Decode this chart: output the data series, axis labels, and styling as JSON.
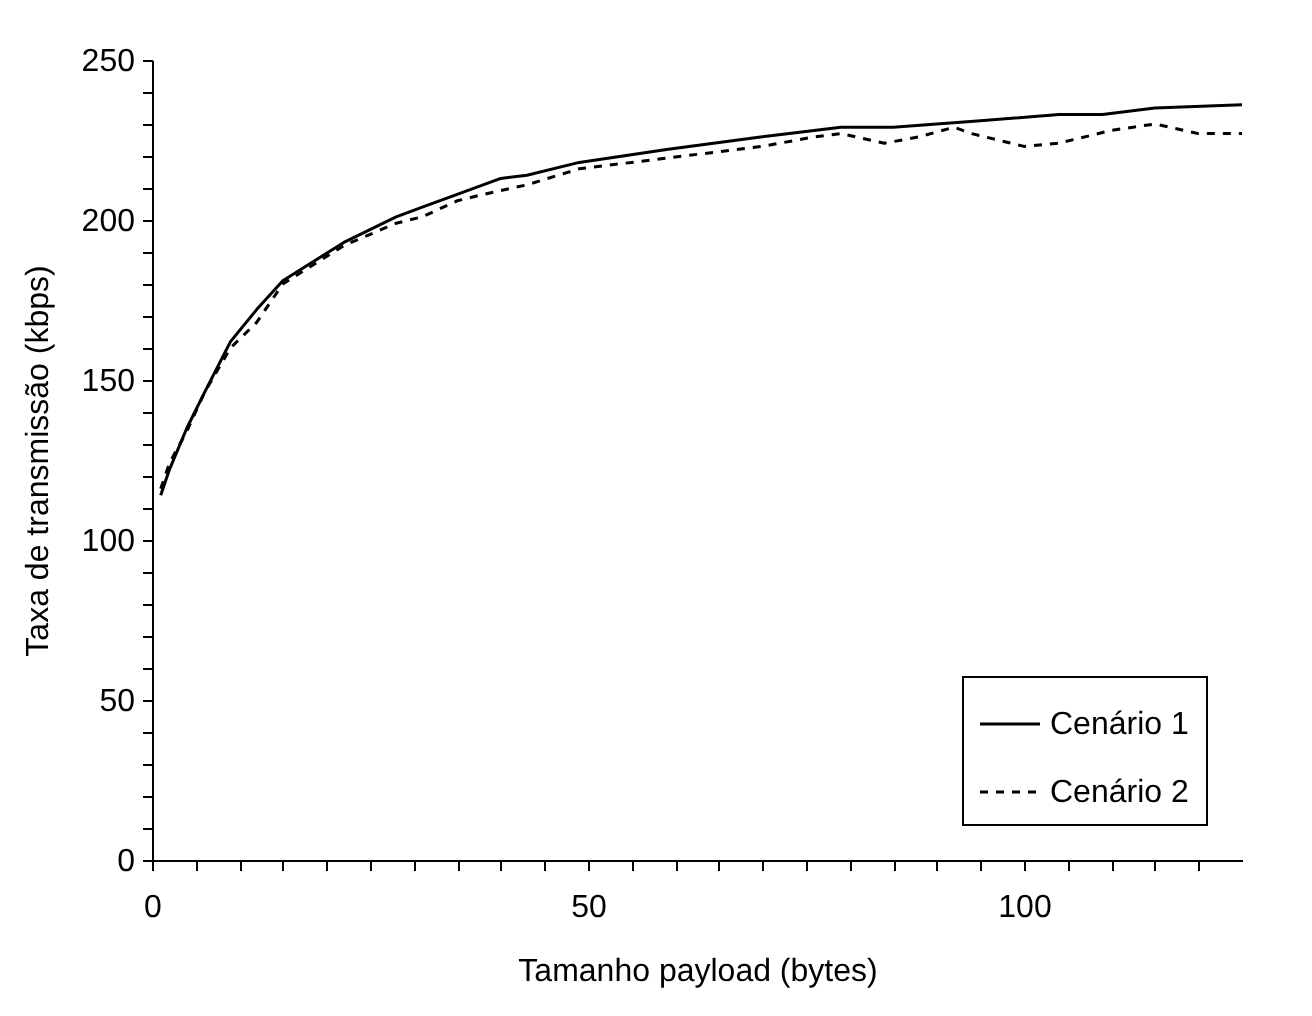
{
  "chart_data": {
    "type": "line",
    "xlabel": "Tamanho payload (bytes)",
    "ylabel": "Taxa de transmissão (kbps)",
    "xlim": [
      0,
      125
    ],
    "ylim": [
      0,
      250
    ],
    "xticks": [
      0,
      {
        "value": 5,
        "label": null
      },
      {
        "value": 10,
        "label": null
      },
      {
        "value": 15,
        "label": null
      },
      {
        "value": 20,
        "label": null
      },
      {
        "value": 25,
        "label": null
      },
      {
        "value": 30,
        "label": null
      },
      {
        "value": 35,
        "label": null
      },
      {
        "value": 40,
        "label": null
      },
      {
        "value": 45,
        "label": null
      },
      50,
      {
        "value": 55,
        "label": null
      },
      {
        "value": 60,
        "label": null
      },
      {
        "value": 65,
        "label": null
      },
      {
        "value": 70,
        "label": null
      },
      {
        "value": 75,
        "label": null
      },
      {
        "value": 80,
        "label": null
      },
      {
        "value": 85,
        "label": null
      },
      {
        "value": 90,
        "label": null
      },
      {
        "value": 95,
        "label": null
      },
      100,
      {
        "value": 105,
        "label": null
      },
      {
        "value": 110,
        "label": null
      },
      {
        "value": 115,
        "label": null
      },
      {
        "value": 120,
        "label": null
      }
    ],
    "yticks": [
      0,
      {
        "value": 10,
        "label": null
      },
      {
        "value": 20,
        "label": null
      },
      {
        "value": 30,
        "label": null
      },
      {
        "value": 40,
        "label": null
      },
      50,
      {
        "value": 60,
        "label": null
      },
      {
        "value": 70,
        "label": null
      },
      {
        "value": 80,
        "label": null
      },
      {
        "value": 90,
        "label": null
      },
      100,
      {
        "value": 110,
        "label": null
      },
      {
        "value": 120,
        "label": null
      },
      {
        "value": 130,
        "label": null
      },
      {
        "value": 140,
        "label": null
      },
      150,
      {
        "value": 160,
        "label": null
      },
      {
        "value": 170,
        "label": null
      },
      {
        "value": 180,
        "label": null
      },
      {
        "value": 190,
        "label": null
      },
      200,
      {
        "value": 210,
        "label": null
      },
      {
        "value": 220,
        "label": null
      },
      {
        "value": 230,
        "label": null
      },
      {
        "value": 240,
        "label": null
      },
      250
    ],
    "grid": false,
    "legend": "bottom right",
    "marker": "none",
    "series": [
      {
        "name": "Cenário 1",
        "color": "#000000",
        "line_style": "solid",
        "x": [
          1,
          2,
          4,
          6,
          9,
          12,
          15,
          22,
          28,
          31,
          35,
          40,
          43,
          49,
          59,
          70,
          79,
          85,
          95,
          104,
          109,
          115,
          125
        ],
        "values": [
          114,
          122,
          135,
          146,
          162,
          172,
          181,
          193,
          201,
          204,
          208,
          213,
          214,
          218,
          222,
          226,
          229,
          229,
          231,
          233,
          233,
          235,
          236
        ]
      },
      {
        "name": "Cenário 2",
        "color": "#000000",
        "line_style": "dashed",
        "x": [
          1,
          2,
          4,
          6,
          9,
          12,
          15,
          22,
          28,
          31,
          35,
          38,
          43,
          49,
          55,
          61,
          70,
          76,
          79,
          84,
          88,
          92,
          94,
          100,
          104,
          110,
          115,
          120,
          125
        ],
        "values": [
          116,
          124,
          134,
          146,
          160,
          168,
          180,
          192,
          199,
          201,
          206,
          208,
          211,
          216,
          218,
          220,
          223,
          226,
          227,
          224,
          226,
          229,
          227,
          223,
          224,
          228,
          230,
          227,
          227
        ]
      }
    ]
  }
}
